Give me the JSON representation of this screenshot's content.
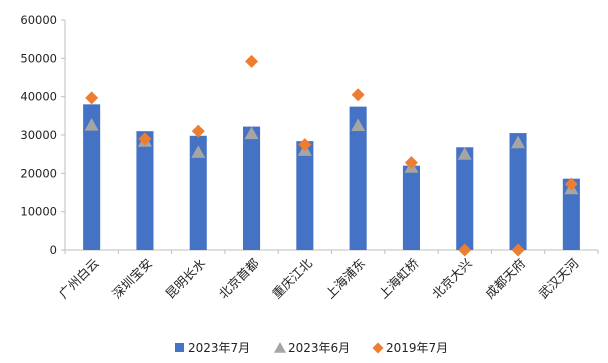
{
  "chart_data": {
    "type": "bar",
    "categories": [
      "广州白云",
      "深圳宝安",
      "昆明长水",
      "北京首都",
      "重庆江北",
      "上海浦东",
      "上海虹桥",
      "北京大兴",
      "成都天府",
      "武汉天河"
    ],
    "series": [
      {
        "name": "2023年7月",
        "type": "bar",
        "marker": "bar",
        "color": "#4472C4",
        "values": [
          38000,
          31000,
          29800,
          32200,
          28400,
          37400,
          22000,
          26800,
          30500,
          18600
        ]
      },
      {
        "name": "2023年6月",
        "type": "scatter",
        "marker": "triangle",
        "color": "#A5A5A5",
        "values": [
          32600,
          28400,
          25500,
          30400,
          26000,
          32500,
          21600,
          25000,
          28000,
          16000
        ]
      },
      {
        "name": "2019年7月",
        "type": "scatter",
        "marker": "diamond",
        "color": "#ED7D31",
        "values": [
          39700,
          29000,
          31000,
          49200,
          27500,
          40500,
          22800,
          0,
          0,
          17200
        ]
      }
    ],
    "ylim": [
      0,
      60000
    ],
    "yticks": [
      "0",
      "10000",
      "20000",
      "30000",
      "40000",
      "50000",
      "60000"
    ],
    "grid": false,
    "legend_position": "bottom",
    "title": "",
    "xlabel": "",
    "ylabel": ""
  }
}
